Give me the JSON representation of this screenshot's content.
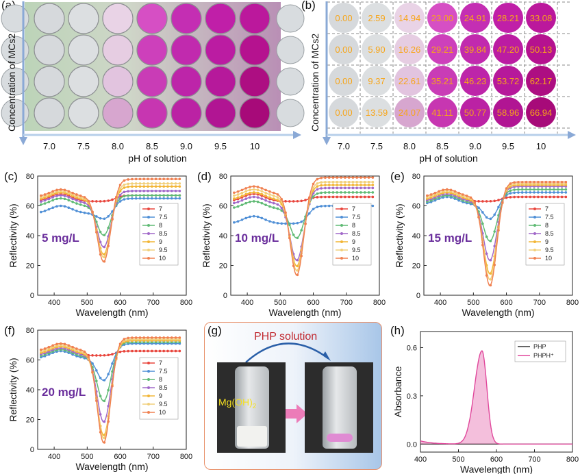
{
  "figure": {
    "panels": [
      {
        "id": "a",
        "label": "(a)",
        "ylabel": "Concentration of MCs2",
        "xlabel": "pH of solution",
        "xticks": [
          "7.0",
          "7.5",
          "8.0",
          "8.5",
          "9.0",
          "9.5",
          "10"
        ]
      },
      {
        "id": "b",
        "label": "(b)",
        "ylabel": "Concentration of MCs2",
        "xlabel": "pH of solution",
        "xticks": [
          "7.0",
          "7.5",
          "8.0",
          "8.5",
          "9.0",
          "9.5",
          "10"
        ],
        "grid_values": [
          [
            "0.00",
            "2.59",
            "14.94",
            "23.00",
            "24.91",
            "28.21",
            "33.08"
          ],
          [
            "0.00",
            "5.90",
            "16.26",
            "29.21",
            "39.84",
            "47.20",
            "50.13"
          ],
          [
            "0.00",
            "9.37",
            "22.61",
            "35.21",
            "46.23",
            "53.72",
            "62.17"
          ],
          [
            "0.00",
            "13.59",
            "24.07",
            "41.11",
            "50.77",
            "58.96",
            "66.94"
          ]
        ]
      },
      {
        "id": "g",
        "label": "(g)",
        "title": "PHP solution",
        "reagent": "Mg(OH)",
        "reagent_sub": "2"
      }
    ],
    "well_colors": [
      [
        "#d6d9dc",
        "#dcdfe1",
        "#e9d3e6",
        "#d64fc4",
        "#c42eb3",
        "#c01fa8",
        "#bb189c"
      ],
      [
        "#d6d9dc",
        "#dcdfe1",
        "#e6cde2",
        "#cd40bb",
        "#c12aae",
        "#bb1ca2",
        "#b5128f"
      ],
      [
        "#d6d9dc",
        "#dcdfe1",
        "#e2c4df",
        "#c93cb6",
        "#bd25a9",
        "#b6199b",
        "#ad0e82"
      ],
      [
        "#d6d9dc",
        "#dcdfe1",
        "#d7a6cf",
        "#c736b1",
        "#bb22a4",
        "#b11593",
        "#a70a79"
      ]
    ]
  },
  "chart_data": [
    {
      "panel": "(c)",
      "type": "line",
      "annotation": "5 mg/L",
      "xlabel": "Wavelength (nm)",
      "ylabel": "Reflectivity (%)",
      "xlim": [
        350,
        800
      ],
      "ylim": [
        0,
        80
      ],
      "xticks": [
        "400",
        "500",
        "600",
        "700",
        "800"
      ],
      "yticks": [
        "0",
        "20",
        "40",
        "60",
        "80"
      ],
      "series": [
        {
          "name": "7",
          "color": "#e8453c",
          "base": 63,
          "end": 67,
          "dip": 0
        },
        {
          "name": "7.5",
          "color": "#4f8fd6",
          "base": 55,
          "end": 65,
          "dip": 4
        },
        {
          "name": "8",
          "color": "#5fba74",
          "base": 60,
          "end": 67,
          "dip": 20
        },
        {
          "name": "8.5",
          "color": "#a168c9",
          "base": 62,
          "end": 70,
          "dip": 30
        },
        {
          "name": "9",
          "color": "#f2b535",
          "base": 64,
          "end": 73,
          "dip": 37
        },
        {
          "name": "9.5",
          "color": "#f1cf7a",
          "base": 65,
          "end": 75,
          "dip": 40
        },
        {
          "name": "10",
          "color": "#f08050",
          "base": 66,
          "end": 78,
          "dip": 44
        }
      ]
    },
    {
      "panel": "(d)",
      "type": "line",
      "annotation": "10 mg/L",
      "xlabel": "Wavelength (nm)",
      "ylabel": "Reflectivity (%)",
      "xlim": [
        350,
        800
      ],
      "ylim": [
        0,
        80
      ],
      "xticks": [
        "400",
        "500",
        "600",
        "700",
        "800"
      ],
      "yticks": [
        "0",
        "20",
        "40",
        "60",
        "80"
      ],
      "series": [
        {
          "name": "7",
          "color": "#e8453c",
          "base": 63,
          "end": 66,
          "dip": 0
        },
        {
          "name": "7.5",
          "color": "#4f8fd6",
          "base": 48,
          "end": 60,
          "dip": 0
        },
        {
          "name": "8",
          "color": "#5fba74",
          "base": 58,
          "end": 69,
          "dip": 20
        },
        {
          "name": "8.5",
          "color": "#a168c9",
          "base": 61,
          "end": 72,
          "dip": 38
        },
        {
          "name": "9",
          "color": "#f2b535",
          "base": 64,
          "end": 74,
          "dip": 45
        },
        {
          "name": "9.5",
          "color": "#f1cf7a",
          "base": 66,
          "end": 76,
          "dip": 50
        },
        {
          "name": "10",
          "color": "#f08050",
          "base": 68,
          "end": 79,
          "dip": 55
        }
      ]
    },
    {
      "panel": "(e)",
      "type": "line",
      "annotation": "15 mg/L",
      "xlabel": "Wavelength (nm)",
      "ylabel": "Reflectivity (%)",
      "xlim": [
        350,
        800
      ],
      "ylim": [
        0,
        80
      ],
      "xticks": [
        "400",
        "500",
        "600",
        "700",
        "800"
      ],
      "yticks": [
        "0",
        "20",
        "40",
        "60",
        "80"
      ],
      "series": [
        {
          "name": "7",
          "color": "#e8453c",
          "base": 63,
          "end": 66,
          "dip": 0
        },
        {
          "name": "7.5",
          "color": "#4f8fd6",
          "base": 61,
          "end": 69,
          "dip": 10
        },
        {
          "name": "8",
          "color": "#5fba74",
          "base": 62,
          "end": 71,
          "dip": 26
        },
        {
          "name": "8.5",
          "color": "#a168c9",
          "base": 63,
          "end": 73,
          "dip": 40
        },
        {
          "name": "9",
          "color": "#f2b535",
          "base": 64,
          "end": 74,
          "dip": 50
        },
        {
          "name": "9.5",
          "color": "#f1cf7a",
          "base": 65,
          "end": 75,
          "dip": 55
        },
        {
          "name": "10",
          "color": "#f08050",
          "base": 66,
          "end": 76,
          "dip": 60
        }
      ]
    },
    {
      "panel": "(f)",
      "type": "line",
      "annotation": "20 mg/L",
      "xlabel": "Wavelength (nm)",
      "ylabel": "Reflectivity (%)",
      "xlim": [
        350,
        800
      ],
      "ylim": [
        0,
        80
      ],
      "xticks": [
        "400",
        "500",
        "600",
        "700",
        "800"
      ],
      "yticks": [
        "0",
        "20",
        "40",
        "60",
        "80"
      ],
      "series": [
        {
          "name": "7",
          "color": "#e8453c",
          "base": 63,
          "end": 66,
          "dip": 0
        },
        {
          "name": "7.5",
          "color": "#4f8fd6",
          "base": 61,
          "end": 71,
          "dip": 15
        },
        {
          "name": "8",
          "color": "#5fba74",
          "base": 62,
          "end": 72,
          "dip": 30
        },
        {
          "name": "8.5",
          "color": "#a168c9",
          "base": 63,
          "end": 73,
          "dip": 45
        },
        {
          "name": "9",
          "color": "#f2b535",
          "base": 64,
          "end": 73,
          "dip": 55
        },
        {
          "name": "9.5",
          "color": "#f1cf7a",
          "base": 65,
          "end": 74,
          "dip": 58
        },
        {
          "name": "10",
          "color": "#f08050",
          "base": 66,
          "end": 75,
          "dip": 62
        }
      ]
    },
    {
      "panel": "(h)",
      "type": "line",
      "xlabel": "Wavelength (nm)",
      "ylabel": "Absorbance",
      "xlim": [
        400,
        800
      ],
      "ylim": [
        -0.05,
        0.7
      ],
      "xticks": [
        "400",
        "500",
        "600",
        "700",
        "800"
      ],
      "yticks": [
        "0.0",
        "0.3",
        "0.6"
      ],
      "series": [
        {
          "name": "PHP",
          "color": "#333333",
          "peak": 0.0
        },
        {
          "name": "PHPH⁺",
          "color": "#e0479b",
          "peak": 0.58
        }
      ]
    }
  ]
}
